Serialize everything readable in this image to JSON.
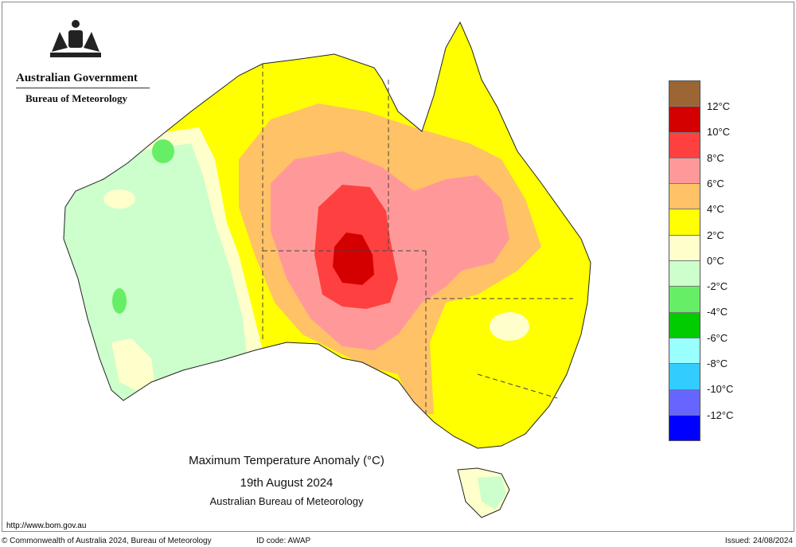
{
  "header": {
    "org": "Australian Government",
    "bureau": "Bureau of Meteorology",
    "logo": "commonwealth-coat-of-arms"
  },
  "title": {
    "line1": "Maximum Temperature Anomaly (°C)",
    "line2": "19th August 2024",
    "line3": "Australian Bureau of Meteorology"
  },
  "legend": {
    "colors": [
      "#9b6534",
      "#d40000",
      "#ff4040",
      "#ff9999",
      "#ffc266",
      "#ffff00",
      "#ffffcc",
      "#ccffcc",
      "#66ee66",
      "#00cc00",
      "#99ffff",
      "#33ccff",
      "#6666ff",
      "#0000ff"
    ],
    "labels": [
      "12°C",
      "10°C",
      "8°C",
      "6°C",
      "4°C",
      "2°C",
      "0°C",
      "-2°C",
      "-4°C",
      "-6°C",
      "-8°C",
      "-10°C",
      "-12°C"
    ]
  },
  "footer": {
    "url": "http://www.bom.gov.au",
    "copyright": "© Commonwealth of Australia 2024, Bureau of Meteorology",
    "id_code": "ID code: AWAP",
    "issued": "Issued: 24/08/2024"
  }
}
